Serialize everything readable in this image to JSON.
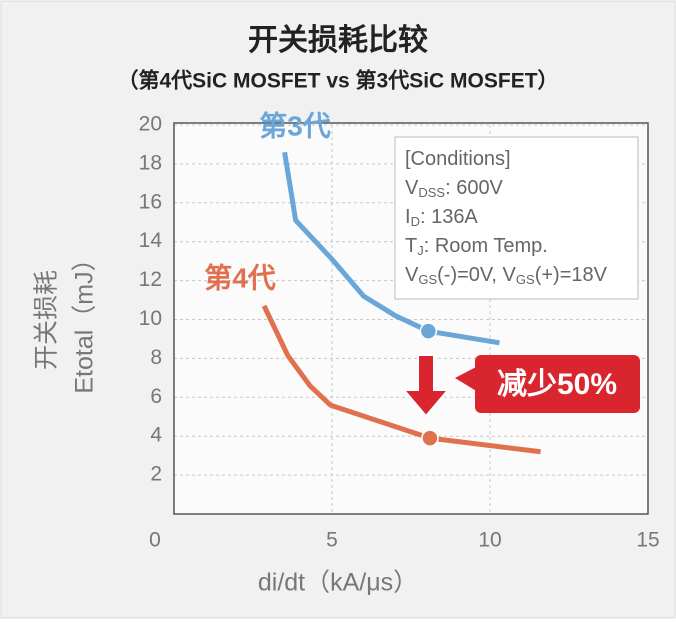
{
  "chart_data": {
    "type": "line",
    "title": "开关损耗比较",
    "subtitle": "（第4代SiC MOSFET vs 第3代SiC MOSFET）",
    "x_label": "di/dt（kA/μs）",
    "y_label_lines": [
      "开关损耗",
      "Etotal（mJ）"
    ],
    "xlim": [
      0,
      15
    ],
    "xticks": [
      0,
      5,
      10,
      15
    ],
    "ylim": [
      0,
      20
    ],
    "yticks": [
      2,
      4,
      6,
      8,
      10,
      12,
      14,
      16,
      18,
      20
    ],
    "grid": true,
    "series": [
      {
        "name": "第3代",
        "color": "#6aa6d8",
        "highlight_index": 5,
        "x": [
          3.5,
          3.85,
          5,
          6,
          7,
          8.05,
          10.3
        ],
        "values": [
          18.6,
          15.1,
          13.1,
          11.2,
          10.2,
          9.4,
          8.8
        ]
      },
      {
        "name": "第4代",
        "color": "#e0714f",
        "highlight_index": 4,
        "x": [
          2.85,
          3.6,
          4.3,
          4.95,
          8.1,
          11.6
        ],
        "values": [
          10.7,
          8.15,
          6.6,
          5.6,
          3.9,
          3.2
        ]
      }
    ],
    "conditions": [
      [
        {
          "text": "[Conditions]"
        }
      ],
      [
        {
          "text": "V"
        },
        {
          "text": "DSS",
          "sub": true
        },
        {
          "text": ": 600V"
        }
      ],
      [
        {
          "text": "I"
        },
        {
          "text": "D",
          "sub": true
        },
        {
          "text": ": 136A"
        }
      ],
      [
        {
          "text": "T"
        },
        {
          "text": "J",
          "sub": true
        },
        {
          "text": ": Room Temp."
        }
      ],
      [
        {
          "text": "V"
        },
        {
          "text": "GS",
          "sub": true
        },
        {
          "text": "(-)=0V, V"
        },
        {
          "text": "GS",
          "sub": true
        },
        {
          "text": "(+)=18V"
        }
      ]
    ],
    "annotation": "减少50%"
  }
}
